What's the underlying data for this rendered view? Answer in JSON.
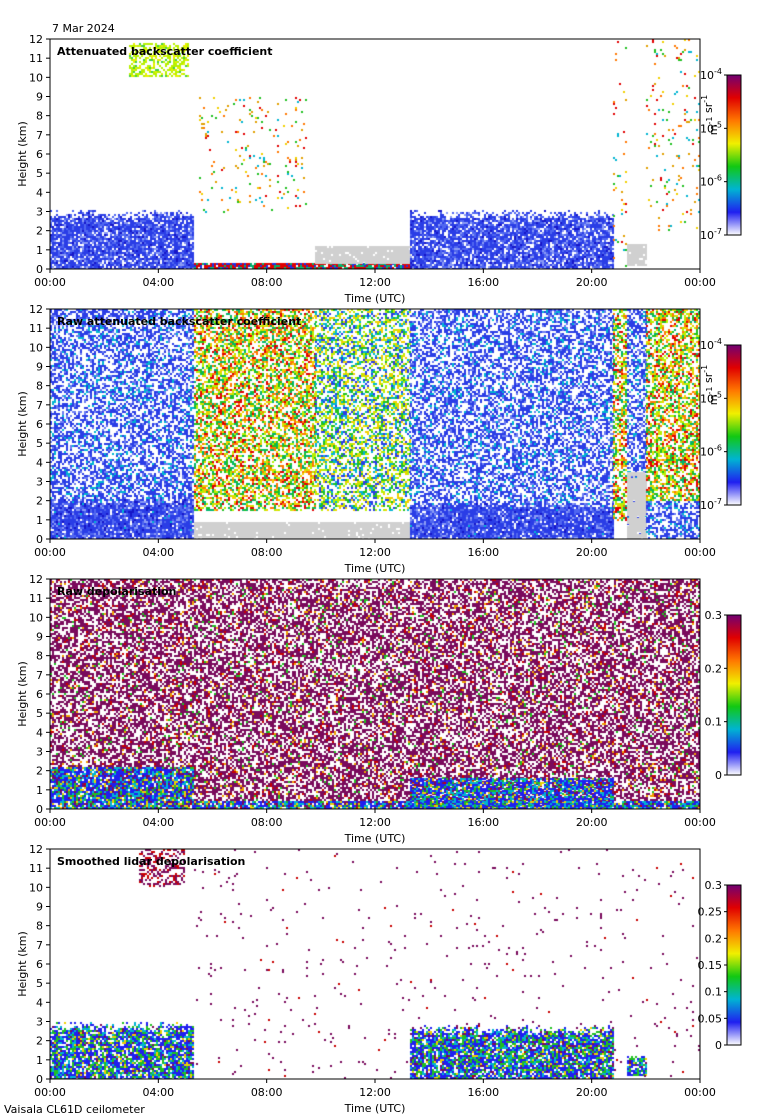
{
  "header": {
    "date": "7 Mar 2024"
  },
  "footer": {
    "instrument": "Vaisala CL61D ceilometer"
  },
  "colors": {
    "background": "#ffffff",
    "no_data": "#d0d0d0",
    "colormap": [
      "#ffffff",
      "#1f1ff0",
      "#00b4d2",
      "#12c812",
      "#f0f000",
      "#ff7800",
      "#e00000",
      "#720072"
    ]
  },
  "chart_data": [
    {
      "type": "heatmap",
      "title": "Attenuated backscatter coefficient",
      "xlabel": "Time (UTC)",
      "ylabel": "Height (km)",
      "xlim": [
        0,
        24
      ],
      "ylim": [
        0,
        12
      ],
      "x_ticks": [
        "00:00",
        "04:00",
        "08:00",
        "12:00",
        "16:00",
        "20:00",
        "00:00"
      ],
      "y_ticks": [
        "0",
        "1",
        "2",
        "3",
        "4",
        "5",
        "6",
        "7",
        "8",
        "9",
        "10",
        "11",
        "12"
      ],
      "colorbar": {
        "scale": "log",
        "range": [
          1e-07,
          0.0001
        ],
        "ticks": [
          "10^-7",
          "10^-6",
          "10^-5",
          "10^-4"
        ],
        "label": "m^-1 sr^-1"
      },
      "regions": [
        {
          "t": [
            0,
            5.3
          ],
          "h": [
            0,
            3.2
          ],
          "kind": "cloud_low"
        },
        {
          "t": [
            2.9,
            5.1
          ],
          "h": [
            10.0,
            11.8
          ],
          "kind": "cirrus"
        },
        {
          "t": [
            5.3,
            13.3
          ],
          "h": [
            0,
            0.3
          ],
          "kind": "surface"
        },
        {
          "t": [
            5.5,
            9.5
          ],
          "h": [
            3,
            9
          ],
          "kind": "sparse_high"
        },
        {
          "t": [
            9.8,
            13.3
          ],
          "h": [
            0.3,
            1.2
          ],
          "kind": "no_data"
        },
        {
          "t": [
            13.3,
            20.8
          ],
          "h": [
            0,
            3.2
          ],
          "kind": "cloud_low"
        },
        {
          "t": [
            20.8,
            21.3
          ],
          "h": [
            0,
            12
          ],
          "kind": "sparse_high"
        },
        {
          "t": [
            21.3,
            22.0
          ],
          "h": [
            0.2,
            1.3
          ],
          "kind": "no_data"
        },
        {
          "t": [
            22.0,
            24.0
          ],
          "h": [
            2,
            12
          ],
          "kind": "sparse_high"
        }
      ]
    },
    {
      "type": "heatmap",
      "title": "Raw attenuated backscatter coefficient",
      "xlabel": "Time (UTC)",
      "ylabel": "Height (km)",
      "xlim": [
        0,
        24
      ],
      "ylim": [
        0,
        12
      ],
      "x_ticks": [
        "00:00",
        "04:00",
        "08:00",
        "12:00",
        "16:00",
        "20:00",
        "00:00"
      ],
      "y_ticks": [
        "0",
        "1",
        "2",
        "3",
        "4",
        "5",
        "6",
        "7",
        "8",
        "9",
        "10",
        "11",
        "12"
      ],
      "colorbar": {
        "scale": "log",
        "range": [
          1e-07,
          0.0001
        ],
        "ticks": [
          "10^-7",
          "10^-6",
          "10^-5",
          "10^-4"
        ],
        "label": "m^-1 sr^-1"
      },
      "regions": [
        {
          "t": [
            0,
            5.3
          ],
          "h": [
            0,
            12
          ],
          "kind": "noise_blue"
        },
        {
          "t": [
            0,
            5.3
          ],
          "h": [
            0,
            2.3
          ],
          "kind": "cloud_low"
        },
        {
          "t": [
            5.3,
            9.8
          ],
          "h": [
            1.5,
            12
          ],
          "kind": "noise_warm"
        },
        {
          "t": [
            5.3,
            13.3
          ],
          "h": [
            0,
            0.9
          ],
          "kind": "no_data"
        },
        {
          "t": [
            9.8,
            13.3
          ],
          "h": [
            1.5,
            12
          ],
          "kind": "noise_green"
        },
        {
          "t": [
            13.3,
            20.8
          ],
          "h": [
            0,
            12
          ],
          "kind": "noise_blue"
        },
        {
          "t": [
            13.3,
            20.8
          ],
          "h": [
            0,
            2.0
          ],
          "kind": "cloud_low"
        },
        {
          "t": [
            20.8,
            21.3
          ],
          "h": [
            1,
            12
          ],
          "kind": "noise_warm"
        },
        {
          "t": [
            21.3,
            22.0
          ],
          "h": [
            0,
            12
          ],
          "kind": "noise_blue"
        },
        {
          "t": [
            21.3,
            22.0
          ],
          "h": [
            0,
            3.5
          ],
          "kind": "no_data"
        },
        {
          "t": [
            22.0,
            24.0
          ],
          "h": [
            2,
            12
          ],
          "kind": "noise_warm"
        },
        {
          "t": [
            22.0,
            24.0
          ],
          "h": [
            0,
            2
          ],
          "kind": "noise_blue"
        }
      ]
    },
    {
      "type": "heatmap",
      "title": "Raw depolarisation",
      "xlabel": "Time (UTC)",
      "ylabel": "Height (km)",
      "xlim": [
        0,
        24
      ],
      "ylim": [
        0,
        12
      ],
      "x_ticks": [
        "00:00",
        "04:00",
        "08:00",
        "12:00",
        "16:00",
        "20:00",
        "00:00"
      ],
      "y_ticks": [
        "0",
        "1",
        "2",
        "3",
        "4",
        "5",
        "6",
        "7",
        "8",
        "9",
        "10",
        "11",
        "12"
      ],
      "colorbar": {
        "scale": "linear",
        "range": [
          0,
          0.3
        ],
        "ticks": [
          "0",
          "0.1",
          "0.2",
          "0.3"
        ]
      },
      "regions": [
        {
          "t": [
            0,
            24
          ],
          "h": [
            0,
            12
          ],
          "kind": "depol_noise"
        },
        {
          "t": [
            0,
            5.3
          ],
          "h": [
            0,
            2.2
          ],
          "kind": "depol_low"
        },
        {
          "t": [
            13.3,
            20.8
          ],
          "h": [
            0,
            1.6
          ],
          "kind": "depol_low"
        },
        {
          "t": [
            5.3,
            24
          ],
          "h": [
            0,
            0.4
          ],
          "kind": "depol_low"
        }
      ]
    },
    {
      "type": "heatmap",
      "title": "Smoothed lidar depolarisation",
      "xlabel": "Time (UTC)",
      "ylabel": "Height (km)",
      "xlim": [
        0,
        24
      ],
      "ylim": [
        0,
        12
      ],
      "x_ticks": [
        "00:00",
        "04:00",
        "08:00",
        "12:00",
        "16:00",
        "20:00",
        "00:00"
      ],
      "y_ticks": [
        "0",
        "1",
        "2",
        "3",
        "4",
        "5",
        "6",
        "7",
        "8",
        "9",
        "10",
        "11",
        "12"
      ],
      "colorbar": {
        "scale": "linear",
        "range": [
          0,
          0.3
        ],
        "ticks": [
          "0",
          "0.05",
          "0.1",
          "0.15",
          "0.2",
          "0.25",
          "0.3"
        ]
      },
      "regions": [
        {
          "t": [
            0,
            5.3
          ],
          "h": [
            0,
            3.1
          ],
          "kind": "smooth_low"
        },
        {
          "t": [
            3.3,
            5.0
          ],
          "h": [
            10.0,
            12
          ],
          "kind": "smooth_cirrus"
        },
        {
          "t": [
            13.3,
            20.8
          ],
          "h": [
            0,
            2.9
          ],
          "kind": "smooth_low"
        },
        {
          "t": [
            21.3,
            22.0
          ],
          "h": [
            0.2,
            1.3
          ],
          "kind": "smooth_low"
        },
        {
          "t": [
            5.3,
            24
          ],
          "h": [
            0,
            12
          ],
          "kind": "sparse_purple"
        }
      ]
    }
  ]
}
